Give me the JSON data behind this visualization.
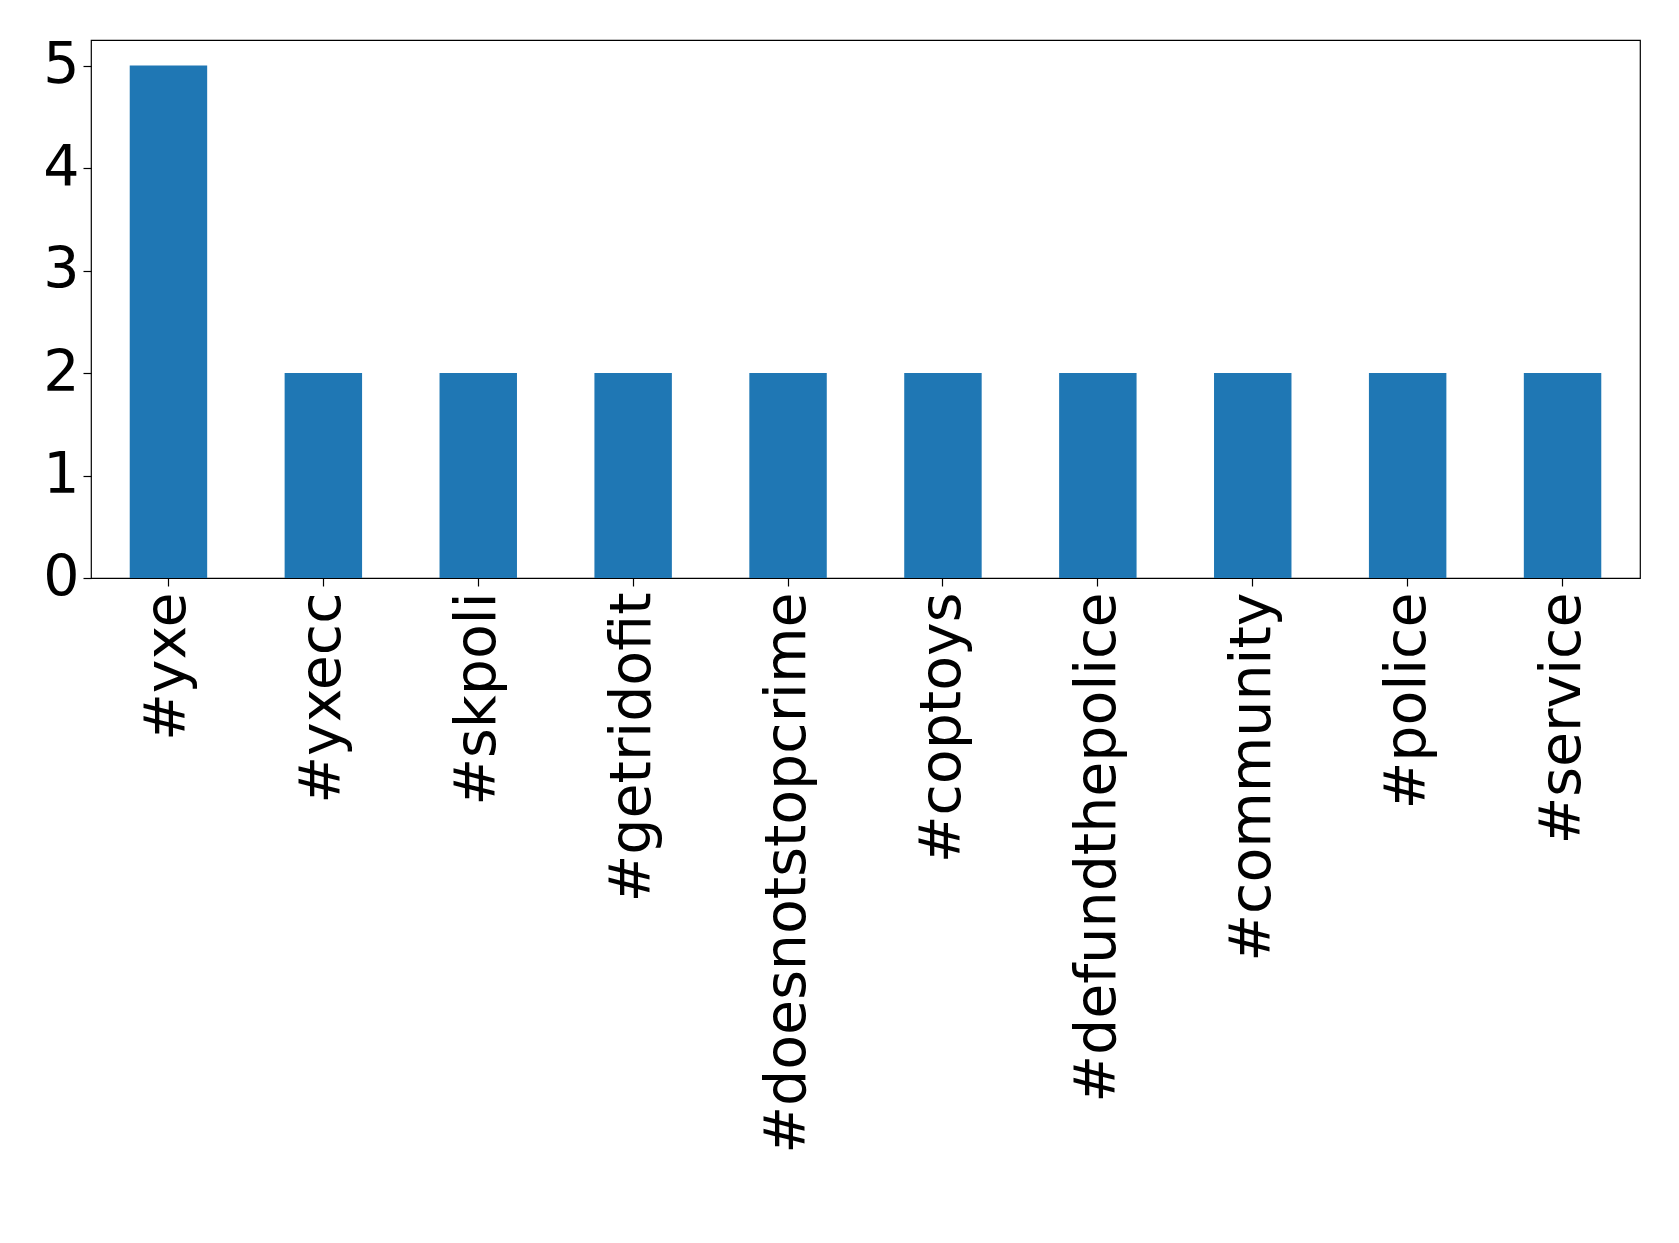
{
  "chart_data": {
    "type": "bar",
    "categories": [
      "#yxe",
      "#yxecc",
      "#skpoli",
      "#getridofit",
      "#doesnotstopcrime",
      "#coptoys",
      "#defundthepolice",
      "#community",
      "#police",
      "#service"
    ],
    "values": [
      5,
      2,
      2,
      2,
      2,
      2,
      2,
      2,
      2,
      2
    ],
    "color": "#1f77b4",
    "ylim": [
      0,
      5.25
    ],
    "yticks": [
      0,
      1,
      2,
      3,
      4,
      5
    ],
    "grid": false
  }
}
